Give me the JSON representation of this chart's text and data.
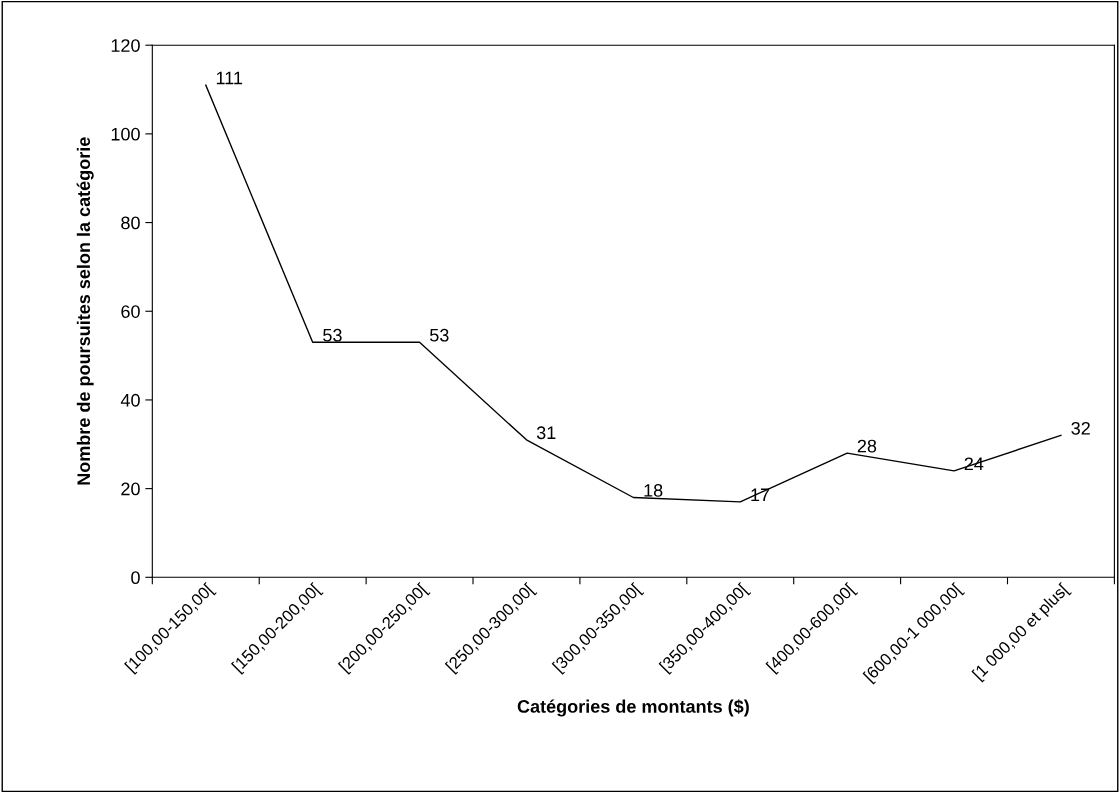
{
  "chart_data": {
    "type": "line",
    "xlabel": "Catégories de montants ($)",
    "ylabel": "Nombre de poursuites selon la catégorie",
    "categories": [
      "[100,00-150,00[",
      "[150,00-200,00[",
      "[200,00-250,00[",
      "[250,00-300,00[",
      "[300,00-350,00[",
      "[350,00-400,00[",
      "[400,00-600,00[",
      "[600,00-1 000,00[",
      "[1 000,00 et plus["
    ],
    "series": [
      {
        "color": "#000000",
        "values": [
          111,
          53,
          53,
          31,
          18,
          17,
          28,
          24,
          32
        ]
      }
    ],
    "data_labels": true,
    "ylim": [
      0,
      120
    ],
    "yticks": [
      0,
      20,
      40,
      60,
      80,
      100,
      120
    ],
    "grid": false,
    "marker": "none",
    "line_style": "solid"
  }
}
